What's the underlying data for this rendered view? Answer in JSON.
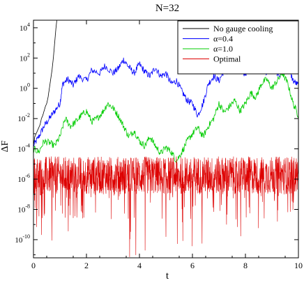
{
  "chart_data": {
    "type": "line",
    "title": "N=32",
    "xlabel": "t",
    "ylabel": "ΔF",
    "xlim": [
      0,
      10
    ],
    "ylim_log10": [
      -11.2,
      4.5
    ],
    "y_scale": "log",
    "grid": false,
    "legend_position": "top-right",
    "x_ticks": [
      "0",
      "2",
      "4",
      "6",
      "8",
      "10"
    ],
    "y_ticks": [
      {
        "exp": 4,
        "label": "10",
        "sup": "4"
      },
      {
        "exp": 2,
        "label": "10",
        "sup": "2"
      },
      {
        "exp": 0,
        "label": "10",
        "sup": "0"
      },
      {
        "exp": -2,
        "label": "10",
        "sup": "-2"
      },
      {
        "exp": -4,
        "label": "10",
        "sup": "-4"
      },
      {
        "exp": -6,
        "label": "10",
        "sup": "-6"
      },
      {
        "exp": -8,
        "label": "10",
        "sup": "-8"
      },
      {
        "exp": -10,
        "label": "10",
        "sup": "-10"
      }
    ],
    "series": [
      {
        "name": "No gauge cooling",
        "color": "#000000",
        "x": [
          0.0,
          0.05,
          0.1,
          0.15,
          0.2,
          0.25,
          0.3,
          0.35,
          0.4,
          0.45,
          0.5,
          0.55,
          0.6,
          0.65,
          0.7,
          0.75,
          0.8,
          0.85,
          0.88
        ],
        "log10_y": [
          -3.8,
          -3.2,
          -3.0,
          -2.8,
          -2.6,
          -2.4,
          -2.0,
          -1.8,
          -1.5,
          -1.2,
          -1.0,
          -0.6,
          0.0,
          0.6,
          1.2,
          2.0,
          3.0,
          4.0,
          4.5
        ]
      },
      {
        "name": "α=0.4",
        "color": "#0000ff",
        "x": [
          0.0,
          0.2,
          0.4,
          0.6,
          0.8,
          1.0,
          1.1,
          1.3,
          1.5,
          1.7,
          2.0,
          2.2,
          2.5,
          2.7,
          3.0,
          3.2,
          3.4,
          3.6,
          3.8,
          4.0,
          4.2,
          4.4,
          4.6,
          4.8,
          5.0,
          5.2,
          5.4,
          5.6,
          5.8,
          6.0,
          6.2,
          6.4,
          6.6,
          6.8,
          7.0,
          7.2,
          7.5,
          7.8,
          8.0,
          8.3,
          8.6,
          8.8,
          9.0,
          9.3,
          9.6,
          9.8,
          10.0
        ],
        "log10_y": [
          -3.8,
          -3.2,
          -2.5,
          -2.0,
          -1.5,
          -1.0,
          0.3,
          0.6,
          0.2,
          0.8,
          0.5,
          1.2,
          1.0,
          1.5,
          1.0,
          1.3,
          1.9,
          1.4,
          1.0,
          1.6,
          1.1,
          0.8,
          1.4,
          0.8,
          1.0,
          0.3,
          0.5,
          -0.2,
          -0.8,
          -1.0,
          -1.8,
          -1.0,
          0.3,
          0.8,
          0.5,
          1.2,
          1.0,
          1.4,
          0.9,
          1.5,
          1.8,
          1.0,
          1.4,
          0.8,
          1.5,
          0.5,
          0.2
        ]
      },
      {
        "name": "α=1.0",
        "color": "#00cc00",
        "x": [
          0.0,
          0.2,
          0.4,
          0.6,
          0.8,
          1.0,
          1.2,
          1.4,
          1.6,
          1.8,
          2.0,
          2.2,
          2.4,
          2.6,
          2.8,
          3.0,
          3.2,
          3.4,
          3.6,
          3.8,
          4.0,
          4.2,
          4.4,
          4.6,
          4.8,
          5.0,
          5.2,
          5.4,
          5.6,
          5.8,
          6.0,
          6.2,
          6.4,
          6.6,
          6.8,
          7.0,
          7.2,
          7.4,
          7.6,
          7.8,
          8.0,
          8.2,
          8.4,
          8.6,
          8.8,
          9.0,
          9.2,
          9.4,
          9.6,
          9.8,
          10.0
        ],
        "log10_y": [
          -4.0,
          -4.2,
          -3.5,
          -3.6,
          -3.8,
          -3.2,
          -2.0,
          -2.5,
          -2.2,
          -1.8,
          -1.5,
          -2.2,
          -2.0,
          -1.6,
          -1.0,
          -1.3,
          -1.8,
          -2.5,
          -3.2,
          -2.8,
          -3.5,
          -3.8,
          -3.2,
          -3.8,
          -4.3,
          -3.9,
          -4.2,
          -4.8,
          -4.2,
          -3.5,
          -3.0,
          -2.6,
          -3.2,
          -2.5,
          -2.0,
          -1.0,
          -1.6,
          -1.2,
          -0.8,
          -1.5,
          -1.0,
          -0.3,
          -0.6,
          0.3,
          0.6,
          0.0,
          0.5,
          1.0,
          0.3,
          -1.0,
          -1.8
        ]
      },
      {
        "name": "Optimal",
        "color": "#dd0000",
        "x_range": [
          0,
          10
        ],
        "log10_y_band": [
          -7.0,
          -4.5
        ],
        "log10_y_typical": -5.9,
        "log10_y_min": -11.2,
        "noise": true
      }
    ]
  }
}
